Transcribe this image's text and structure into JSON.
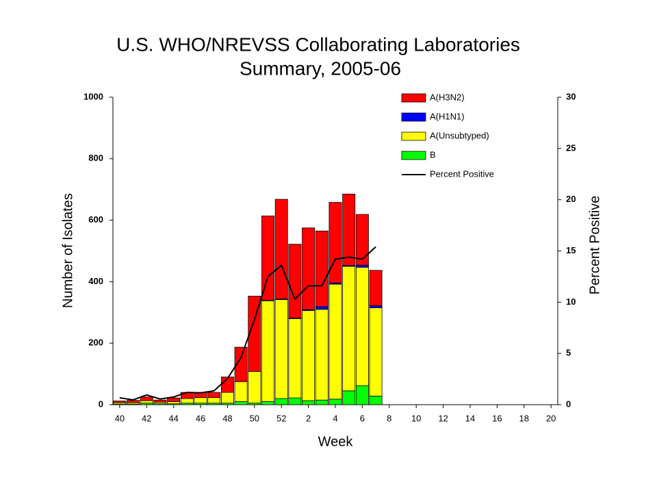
{
  "chart_data": {
    "type": "stacked_bar_line",
    "title": [
      "U.S. WHO/NREVSS Collaborating Laboratories",
      "Summary, 2005-06"
    ],
    "x_label": "Week",
    "y_label": "Number of Isolates",
    "y2_label": "Percent Positive",
    "categories": [
      "40",
      null,
      "42",
      null,
      "44",
      null,
      "46",
      null,
      "48",
      null,
      "50",
      null,
      "52",
      null,
      "2",
      null,
      "4",
      null,
      "6",
      null,
      "8",
      null,
      "10",
      null,
      "12",
      null,
      "14",
      null,
      "16",
      null,
      "18",
      null,
      "20"
    ],
    "series": [
      {
        "name": "B",
        "color": "#00ff00",
        "values": [
          2,
          2,
          5,
          3,
          3,
          5,
          5,
          5,
          5,
          10,
          5,
          10,
          20,
          22,
          13,
          15,
          18,
          45,
          62,
          28,
          null,
          null,
          null,
          null,
          null,
          null,
          null,
          null,
          null,
          null,
          null,
          null,
          null
        ]
      },
      {
        "name": "A(Unsubtyped)",
        "color": "#ffff00",
        "values": [
          5,
          5,
          8,
          5,
          7,
          15,
          18,
          18,
          35,
          65,
          103,
          328,
          322,
          258,
          293,
          295,
          374,
          405,
          385,
          287,
          null,
          null,
          null,
          null,
          null,
          null,
          null,
          null,
          null,
          null,
          null,
          null,
          null
        ]
      },
      {
        "name": "A(H1N1)",
        "color": "#0000ff",
        "values": [
          0,
          0,
          0,
          0,
          0,
          0,
          0,
          0,
          0,
          0,
          0,
          2,
          2,
          2,
          3,
          9,
          4,
          3,
          7,
          7,
          null,
          null,
          null,
          null,
          null,
          null,
          null,
          null,
          null,
          null,
          null,
          null,
          null
        ]
      },
      {
        "name": "A(H3N2)",
        "color": "#ff0000",
        "values": [
          5,
          7,
          12,
          7,
          12,
          20,
          17,
          17,
          50,
          112,
          245,
          274,
          324,
          240,
          266,
          246,
          262,
          232,
          165,
          115,
          null,
          null,
          null,
          null,
          null,
          null,
          null,
          null,
          null,
          null,
          null,
          null,
          null
        ]
      },
      {
        "name": "Percent Positive",
        "color": "#000000",
        "axis": "y2",
        "values": [
          0.67,
          0.47,
          0.95,
          0.55,
          0.75,
          1.2,
          1.15,
          1.35,
          2.55,
          4.6,
          8.3,
          12.5,
          13.6,
          10.3,
          11.6,
          11.6,
          14.2,
          14.4,
          14.2,
          15.4,
          null,
          null,
          null,
          null,
          null,
          null,
          null,
          null,
          null,
          null,
          null,
          null,
          null
        ]
      }
    ],
    "ylim": [
      0,
      1000
    ],
    "yticks": [
      0,
      200,
      400,
      600,
      800,
      1000
    ],
    "y2lim": [
      0,
      30
    ],
    "y2ticks": [
      0,
      5,
      10,
      15,
      20,
      25,
      30
    ],
    "legend": "upper right",
    "grid": false
  }
}
